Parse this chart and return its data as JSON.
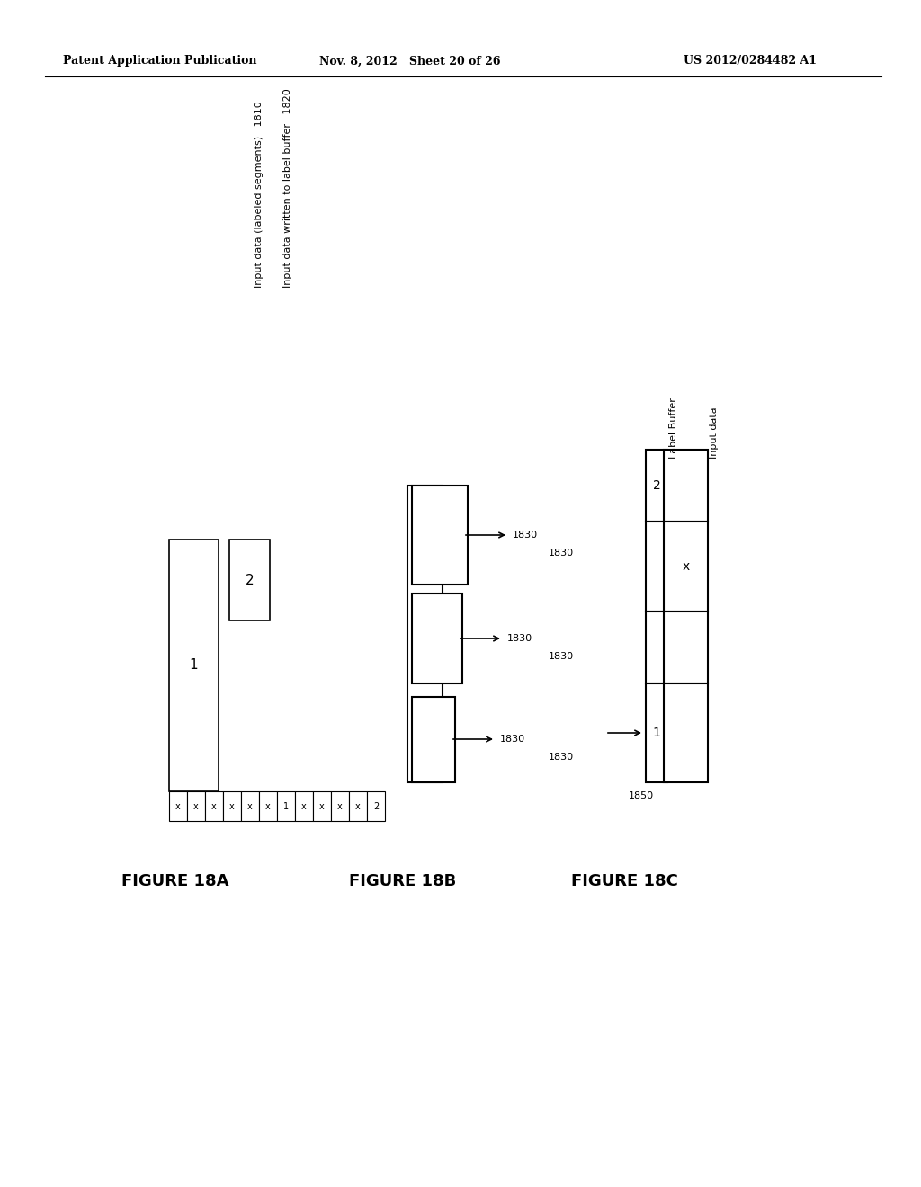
{
  "header_left": "Patent Application Publication",
  "header_mid": "Nov. 8, 2012   Sheet 20 of 26",
  "header_right": "US 2012/0284482 A1",
  "fig18a_label": "FIGURE 18A",
  "fig18b_label": "FIGURE 18B",
  "fig18c_label": "FIGURE 18C",
  "label_1810": "Input data (labeled segments)   1810",
  "label_1820": "Input data written to label buffer   1820",
  "label_1830": "1830",
  "label_1850": "1850",
  "label_buffer_text": "Label Buffer",
  "input_data_text": "Input data",
  "bg_color": "#ffffff",
  "cell_labels": [
    "x",
    "x",
    "x",
    "x",
    "x",
    "x",
    "1",
    "x",
    "x",
    "x",
    "x",
    "2"
  ]
}
